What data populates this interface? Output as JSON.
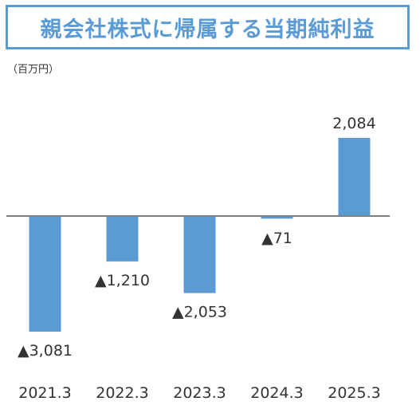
{
  "title": "親会社株式に帰属する当期純利益",
  "unit_label": "（百万円）",
  "colors": {
    "bar": "#5b9bd5",
    "title": "#5b9bd5",
    "axis": "#808080",
    "text": "#333333"
  },
  "chart_data": {
    "type": "bar",
    "title": "親会社株式に帰属する当期純利益",
    "ylabel": "（百万円）",
    "categories": [
      "2021.3",
      "2022.3",
      "2023.3",
      "2024.3",
      "2025.3"
    ],
    "values": [
      -3081,
      -1210,
      -2053,
      -71,
      2084
    ],
    "data_labels": [
      "▲3,081",
      "▲1,210",
      "▲2,053",
      "▲71",
      "2,084"
    ],
    "grid": false,
    "legend": "none"
  }
}
